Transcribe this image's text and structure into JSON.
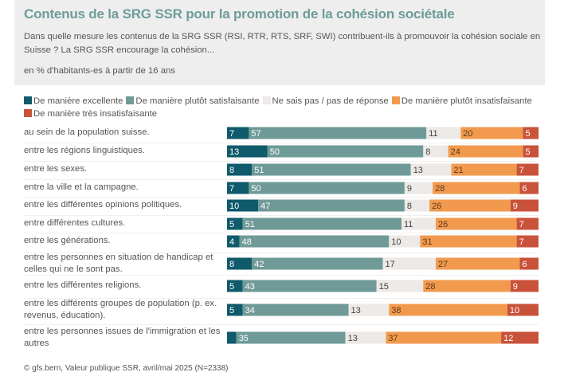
{
  "header": {
    "title": "Contenus de la SRG SSR pour la promotion de la cohésion sociétale",
    "subtitle": "Dans quelle mesure les contenus de la SRG SSR (RSI, RTR, RTS, SRF, SWI) contribuent-ils à promouvoir la cohésion sociale en Suisse ? La SRG SSR encourage la cohésion...",
    "unit": "en % d'habitants-es à partir de 16 ans"
  },
  "footer": {
    "source": "© gfs.bern, Valeur publique SSR, avril/mai 2025 (N=2338)"
  },
  "chart_data": {
    "type": "bar",
    "orientation": "horizontal",
    "stacked": true,
    "title": "Contenus de la SRG SSR pour la promotion de la cohésion sociétale",
    "xlabel": "",
    "ylabel": "",
    "xlim": [
      0,
      100
    ],
    "grid": false,
    "legend_position": "top",
    "categories": [
      "au sein de la population suisse.",
      "entre les régions linguistiques.",
      "entre les sexes.",
      "entre la ville et la campagne.",
      "entre les différentes opinions politiques.",
      "entre différentes cultures.",
      "entre les générations.",
      "entre les personnes en situation de handicap et celles qui ne le sont pas.",
      "entre les différentes religions.",
      "entre les différents groupes de population (p. ex. revenus, éducation).",
      "entre les personnes issues de l'immigration et les autres"
    ],
    "series": [
      {
        "name": "De manière excellente",
        "color": "#0f5a6b",
        "label_color": "#ffffff",
        "values": [
          7,
          13,
          8,
          7,
          10,
          5,
          4,
          8,
          5,
          5,
          3
        ],
        "labels_shown": [
          true,
          true,
          true,
          true,
          true,
          true,
          true,
          true,
          true,
          true,
          false
        ]
      },
      {
        "name": "De manière plutôt satisfaisante",
        "color": "#6f9a97",
        "label_color": "#ffffff",
        "values": [
          57,
          50,
          51,
          50,
          47,
          51,
          48,
          42,
          43,
          34,
          35
        ],
        "labels_shown": [
          true,
          true,
          true,
          true,
          true,
          true,
          true,
          true,
          true,
          true,
          true
        ]
      },
      {
        "name": "Ne sais pas / pas de réponse",
        "color": "#ece9e6",
        "label_color": "#444444",
        "values": [
          11,
          8,
          13,
          9,
          8,
          11,
          10,
          17,
          15,
          13,
          13
        ],
        "labels_shown": [
          true,
          true,
          true,
          true,
          true,
          true,
          true,
          true,
          true,
          true,
          true
        ]
      },
      {
        "name": "De manière plutôt insatisfaisante",
        "color": "#f19a4e",
        "label_color": "#5a3a1a",
        "values": [
          20,
          24,
          21,
          28,
          26,
          26,
          31,
          27,
          28,
          38,
          37
        ],
        "labels_shown": [
          true,
          true,
          true,
          true,
          true,
          true,
          true,
          true,
          true,
          true,
          true
        ]
      },
      {
        "name": "De manière très insatisfaisante",
        "color": "#c9523a",
        "label_color": "#ffffff",
        "values": [
          5,
          5,
          7,
          6,
          9,
          7,
          7,
          6,
          9,
          10,
          12
        ],
        "labels_shown": [
          true,
          true,
          true,
          true,
          true,
          true,
          true,
          true,
          true,
          true,
          true
        ]
      }
    ]
  }
}
